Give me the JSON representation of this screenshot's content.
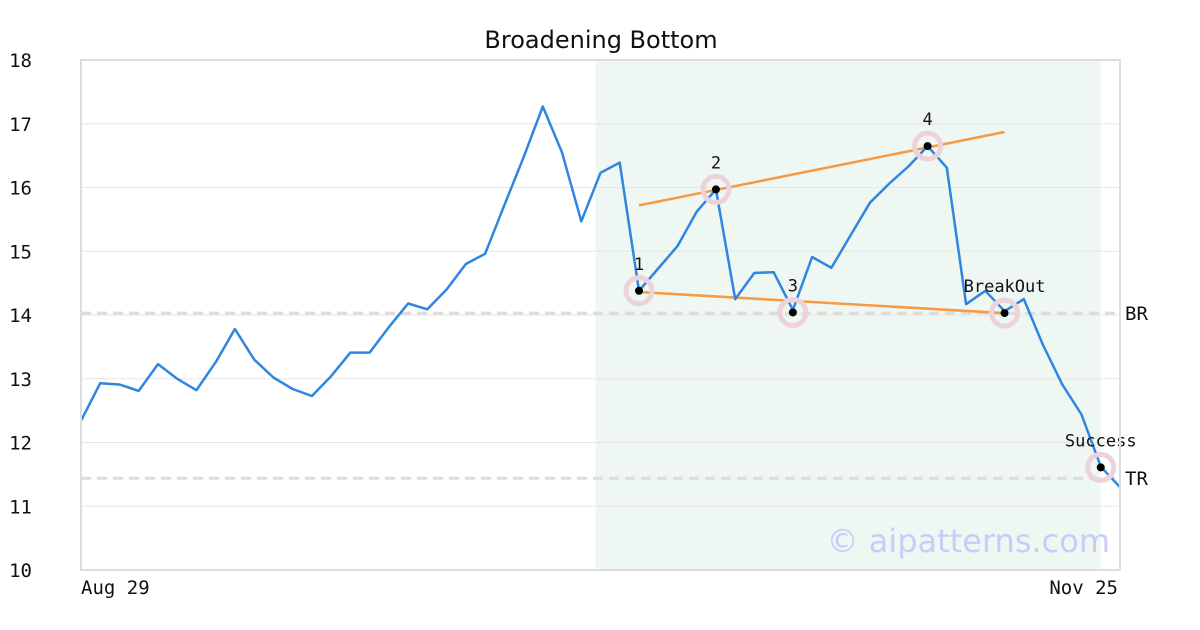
{
  "chart_data": {
    "type": "line",
    "title": "Broadening Bottom",
    "xlabel": "",
    "ylabel": "",
    "x_tick_labels": [
      "Aug 29",
      "Nov 25"
    ],
    "y_ticks": [
      10,
      11,
      12,
      13,
      14,
      15,
      16,
      17,
      18
    ],
    "ylim": [
      10,
      18
    ],
    "x_count": 55,
    "grid": true,
    "series": [
      {
        "color": "#2f86e0",
        "values": [
          12.34,
          12.93,
          12.91,
          12.81,
          13.23,
          13.0,
          12.82,
          13.26,
          13.78,
          13.3,
          13.02,
          12.84,
          12.73,
          13.04,
          13.41,
          13.41,
          13.81,
          14.18,
          14.09,
          14.4,
          14.8,
          14.96,
          15.72,
          16.47,
          17.27,
          16.55,
          15.47,
          16.23,
          16.39,
          14.38,
          14.73,
          15.08,
          15.62,
          15.97,
          14.25,
          14.66,
          14.67,
          14.08,
          14.91,
          14.74,
          15.25,
          15.76,
          16.06,
          16.33,
          16.65,
          16.31,
          14.17,
          14.38,
          14.06,
          14.25,
          13.53,
          12.91,
          12.44,
          11.62,
          11.3
        ]
      }
    ],
    "shaded_region": {
      "from_index": 27,
      "to_index": 53,
      "color": "#eff7f3"
    },
    "reference_lines": [
      {
        "label": "BR",
        "y": 14.03
      },
      {
        "label": "TR",
        "y": 11.44
      }
    ],
    "trendlines": [
      {
        "color": "#f59a45",
        "from": {
          "x_index": 29,
          "y": 15.72
        },
        "to": {
          "x_index": 48,
          "y": 16.87
        }
      },
      {
        "color": "#f59a45",
        "from": {
          "x_index": 29,
          "y": 14.36
        },
        "to": {
          "x_index": 48,
          "y": 14.03
        }
      }
    ],
    "points": [
      {
        "label": "1",
        "x_index": 29,
        "y": 14.38
      },
      {
        "label": "2",
        "x_index": 33,
        "y": 15.97
      },
      {
        "label": "3",
        "x_index": 37,
        "y": 14.04
      },
      {
        "label": "4",
        "x_index": 44,
        "y": 16.65
      },
      {
        "label": "BreakOut",
        "x_index": 48,
        "y": 14.03
      },
      {
        "label": "Success",
        "x_index": 53,
        "y": 11.61
      }
    ],
    "watermark": "© aipatterns.com"
  }
}
